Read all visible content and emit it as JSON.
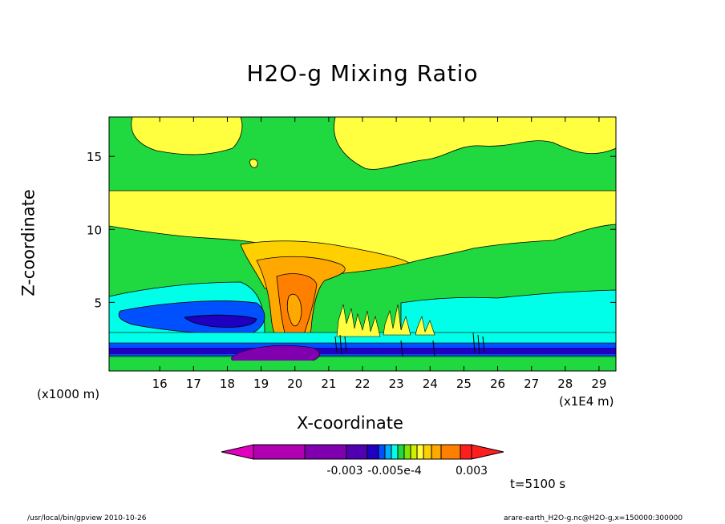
{
  "chart_data": {
    "type": "heatmap",
    "title": "H2O-g Mixing Ratio",
    "xlabel": "X-coordinate",
    "ylabel": "Z-coordinate",
    "x_unit_note": "(x1000 m)",
    "x_scale_note": "(x1E4 m)",
    "x_ticks": [
      16,
      17,
      18,
      19,
      20,
      21,
      22,
      23,
      24,
      25,
      26,
      27,
      28,
      29
    ],
    "y_ticks": [
      5,
      10,
      15
    ],
    "xlim": [
      15.0,
      30.0
    ],
    "ylim": [
      0.3,
      17.7
    ],
    "time_label": "t=5100 s",
    "colorbar": {
      "labels": [
        "-0.003",
        "-0.005e-4",
        "0.003"
      ],
      "colors": [
        "#e000c0",
        "#b000b0",
        "#8000b0",
        "#5000b0",
        "#2000c0",
        "#0050ff",
        "#00b0ff",
        "#00ffe8",
        "#20d840",
        "#80e800",
        "#d0f000",
        "#ffff40",
        "#ffd000",
        "#ffa800",
        "#ff8000",
        "#ff1e1e"
      ]
    },
    "layers": [
      {
        "name": "upper-yellow-band",
        "color": "#ffff40",
        "zmin": 9.5,
        "zmax": 12.6
      },
      {
        "name": "plume-core",
        "color": "#ffa800",
        "x": [
          19.6,
          21.5
        ],
        "zmin": 0.8,
        "zmax": 7.2
      },
      {
        "name": "low-level-blue",
        "color": "#00ffe8",
        "zmin": 0.4,
        "zmax": 5.0
      }
    ]
  },
  "footer": {
    "left": "/usr/local/bin/gpview  2010-10-26",
    "right": "arare-earth_H2O-g.nc@H2O-g,x=150000:300000"
  }
}
